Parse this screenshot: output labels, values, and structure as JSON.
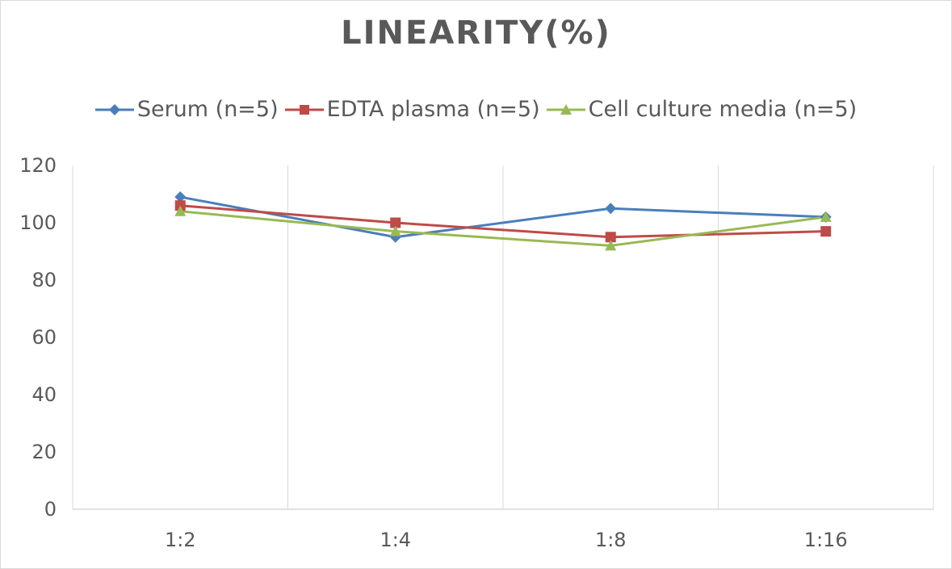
{
  "chart_data": {
    "type": "line",
    "title": "LINEARITY(%)",
    "categories": [
      "1:2",
      "1:4",
      "1:8",
      "1:16"
    ],
    "series": [
      {
        "name": "Serum (n=5)",
        "values": [
          109,
          95,
          105,
          102
        ],
        "color": "#4a7ebb",
        "marker": "diamond"
      },
      {
        "name": "EDTA plasma (n=5)",
        "values": [
          106,
          100,
          95,
          97
        ],
        "color": "#be4b48",
        "marker": "square"
      },
      {
        "name": "Cell culture media (n=5)",
        "values": [
          104,
          97,
          92,
          102
        ],
        "color": "#98b954",
        "marker": "triangle"
      }
    ],
    "ylim": [
      0,
      120
    ],
    "yticks": [
      0,
      20,
      40,
      60,
      80,
      100,
      120
    ],
    "xlabel": "",
    "ylabel": "",
    "grid": "vertical",
    "legend": "top"
  }
}
